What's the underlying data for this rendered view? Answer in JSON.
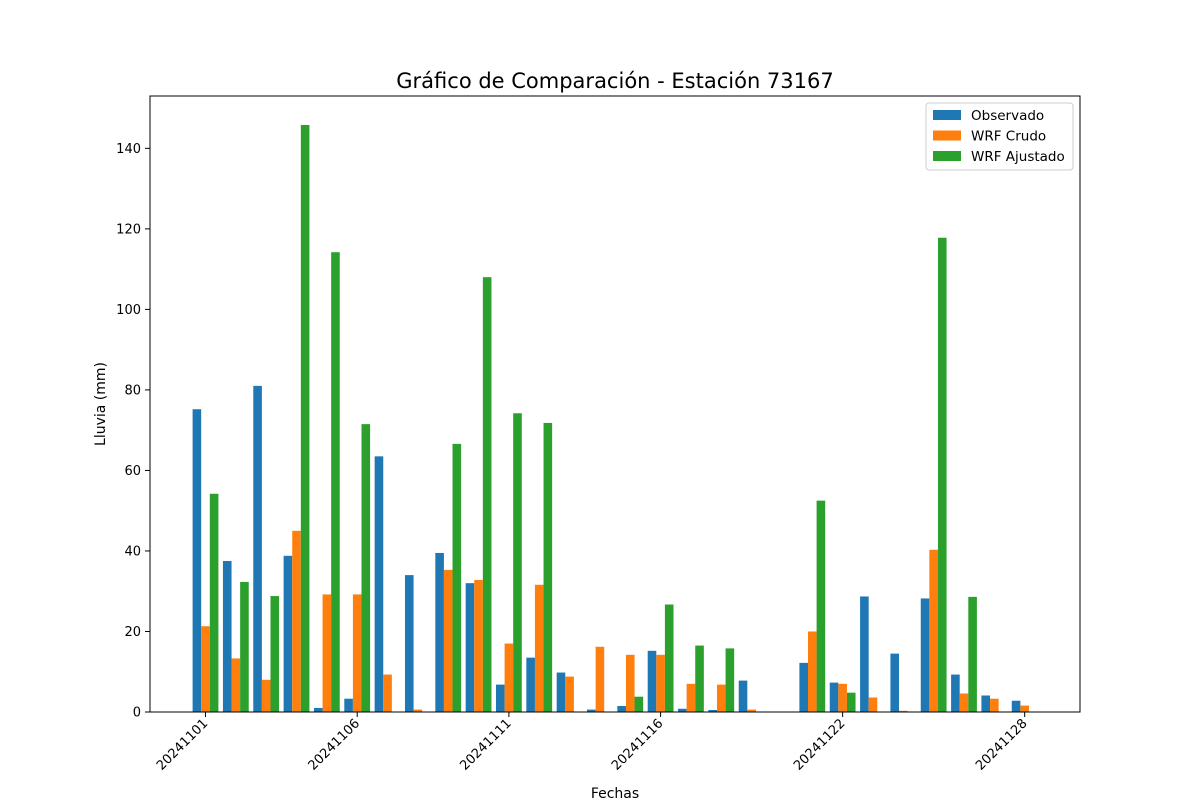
{
  "chart_data": {
    "type": "bar",
    "title": "Gráfico de Comparación - Estación 73167",
    "xlabel": "Fechas",
    "ylabel": "Lluvia (mm)",
    "ylim": [
      0,
      153
    ],
    "yticks": [
      0,
      20,
      40,
      60,
      80,
      100,
      120,
      140
    ],
    "legend_position": "top-right",
    "grid": false,
    "x_tick_labels": [
      {
        "label": "20241101",
        "date": "2024-11-01"
      },
      {
        "label": "20241106",
        "date": "2024-11-06"
      },
      {
        "label": "20241111",
        "date": "2024-11-11"
      },
      {
        "label": "20241116",
        "date": "2024-11-16"
      },
      {
        "label": "20241122",
        "date": "2024-11-22"
      },
      {
        "label": "20241128",
        "date": "2024-11-28"
      }
    ],
    "categories": [
      "2024-11-01",
      "2024-11-02",
      "2024-11-03",
      "2024-11-04",
      "2024-11-05",
      "2024-11-06",
      "2024-11-07",
      "2024-11-08",
      "2024-11-09",
      "2024-11-10",
      "2024-11-11",
      "2024-11-12",
      "2024-11-13",
      "2024-11-14",
      "2024-11-15",
      "2024-11-16",
      "2024-11-17",
      "2024-11-18",
      "2024-11-19",
      "2024-11-21",
      "2024-11-22",
      "2024-11-23",
      "2024-11-24",
      "2024-11-25",
      "2024-11-26",
      "2024-11-27",
      "2024-11-28",
      "2024-11-29"
    ],
    "series": [
      {
        "name": "Observado",
        "color": "#1f77b4",
        "values": [
          75.2,
          37.5,
          81.0,
          38.8,
          1.0,
          3.3,
          63.5,
          34.0,
          39.5,
          32.0,
          6.8,
          13.5,
          9.8,
          0.6,
          1.5,
          15.2,
          0.8,
          0.5,
          7.8,
          12.2,
          7.3,
          28.7,
          14.5,
          28.2,
          9.3,
          4.1,
          2.8,
          0.0
        ]
      },
      {
        "name": "WRF Crudo",
        "color": "#ff7f0e",
        "values": [
          21.3,
          13.3,
          8.0,
          45.0,
          29.2,
          29.2,
          9.3,
          0.6,
          35.3,
          32.8,
          17.0,
          31.6,
          8.8,
          16.2,
          14.2,
          14.2,
          7.0,
          6.8,
          0.6,
          20.0,
          7.0,
          3.6,
          0.3,
          40.3,
          4.6,
          3.3,
          1.6,
          0.0
        ]
      },
      {
        "name": "WRF Ajustado",
        "color": "#2ca02c",
        "values": [
          54.2,
          32.3,
          28.8,
          145.8,
          114.2,
          71.5,
          0.0,
          0.0,
          66.6,
          108.0,
          74.2,
          71.8,
          0.0,
          0.0,
          3.8,
          26.7,
          16.5,
          15.8,
          0.0,
          52.5,
          4.8,
          0.0,
          0.0,
          117.8,
          28.6,
          0.0,
          0.0,
          0.0
        ]
      }
    ]
  }
}
